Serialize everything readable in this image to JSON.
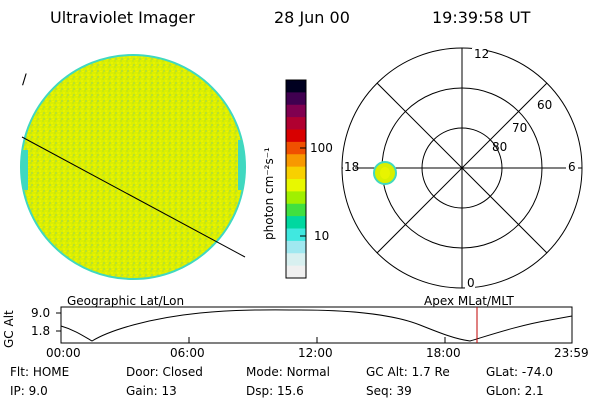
{
  "header": {
    "title": "Ultraviolet Imager",
    "date": "28 Jun 00",
    "time": "19:39:58 UT"
  },
  "image_panel": {
    "slash_mark": "/",
    "fill_color": "#d8f000",
    "rim_color": "#40d8c0"
  },
  "colorbar": {
    "unit_label": "photon cm⁻²s⁻¹",
    "tick_labels": [
      "100",
      "10"
    ],
    "colors": [
      "#000020",
      "#400050",
      "#800050",
      "#b00030",
      "#d80000",
      "#f05000",
      "#f89800",
      "#f8d000",
      "#e8f800",
      "#a0f000",
      "#40e040",
      "#00d8a0",
      "#40e8e0",
      "#a0e8f0",
      "#d8f0f0",
      "#f0f0f0"
    ]
  },
  "polar_plot": {
    "mlt_labels": {
      "top": "12",
      "right": "6",
      "bottom": "0",
      "left": "18"
    },
    "lat_labels": [
      "60",
      "70",
      "80"
    ],
    "spot_color": "#d8f000",
    "spot_rim": "#40d8c0"
  },
  "timeline": {
    "left_caption": "Geographic Lat/Lon",
    "right_caption": "Apex MLat/MLT",
    "axis_label": "GC Alt",
    "y_ticks": [
      "9.0",
      "1.8"
    ],
    "x_ticks": [
      "00:00",
      "06:00",
      "12:00",
      "18:00",
      "23:59"
    ],
    "current_marker_color": "#c00000"
  },
  "status": {
    "flt_label": "Flt:",
    "flt_value": "HOME",
    "door_label": "Door:",
    "door_value": "Closed",
    "mode_label": "Mode:",
    "mode_value": "Normal",
    "gcalt_label": "GC Alt:",
    "gcalt_value": "1.7 Re",
    "glat_label": "GLat:",
    "glat_value": "-74.0",
    "ip_label": "IP:",
    "ip_value": "9.0",
    "gain_label": "Gain:",
    "gain_value": "13",
    "dsp_label": "Dsp:",
    "dsp_value": "15.6",
    "seq_label": "Seq:",
    "seq_value": "39",
    "glon_label": "GLon:",
    "glon_value": "2.1"
  }
}
